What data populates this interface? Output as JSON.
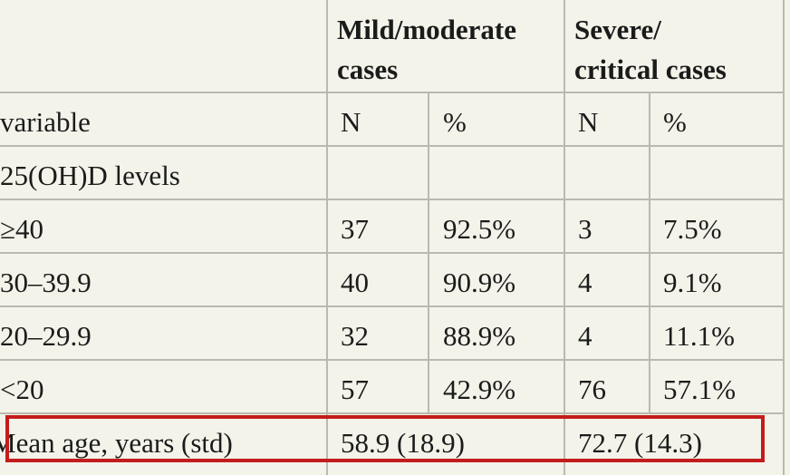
{
  "header": {
    "group1": [
      "Mild/moderate",
      "cases"
    ],
    "group2": [
      "Severe/",
      "critical cases"
    ]
  },
  "subheader": {
    "variable": "variable",
    "n1": "N",
    "p1": "%",
    "n2": "N",
    "p2": "%"
  },
  "section_label": "25(OH)D levels",
  "rows": [
    {
      "label": "≥40",
      "n1": "37",
      "p1": "92.5%",
      "n2": "3",
      "p2": "7.5%"
    },
    {
      "label": "30–39.9",
      "n1": "40",
      "p1": "90.9%",
      "n2": "4",
      "p2": "9.1%"
    },
    {
      "label": "20–29.9",
      "n1": "32",
      "p1": "88.9%",
      "n2": "4",
      "p2": "11.1%"
    },
    {
      "label": "<20",
      "n1": "57",
      "p1": "42.9%",
      "n2": "76",
      "p2": "57.1%"
    }
  ],
  "age_row": {
    "label": "Mean age, years (std)",
    "group1": "58.9 (18.9)",
    "group2": "72.7 (14.3)"
  },
  "highlight_color": "#c41c1c"
}
